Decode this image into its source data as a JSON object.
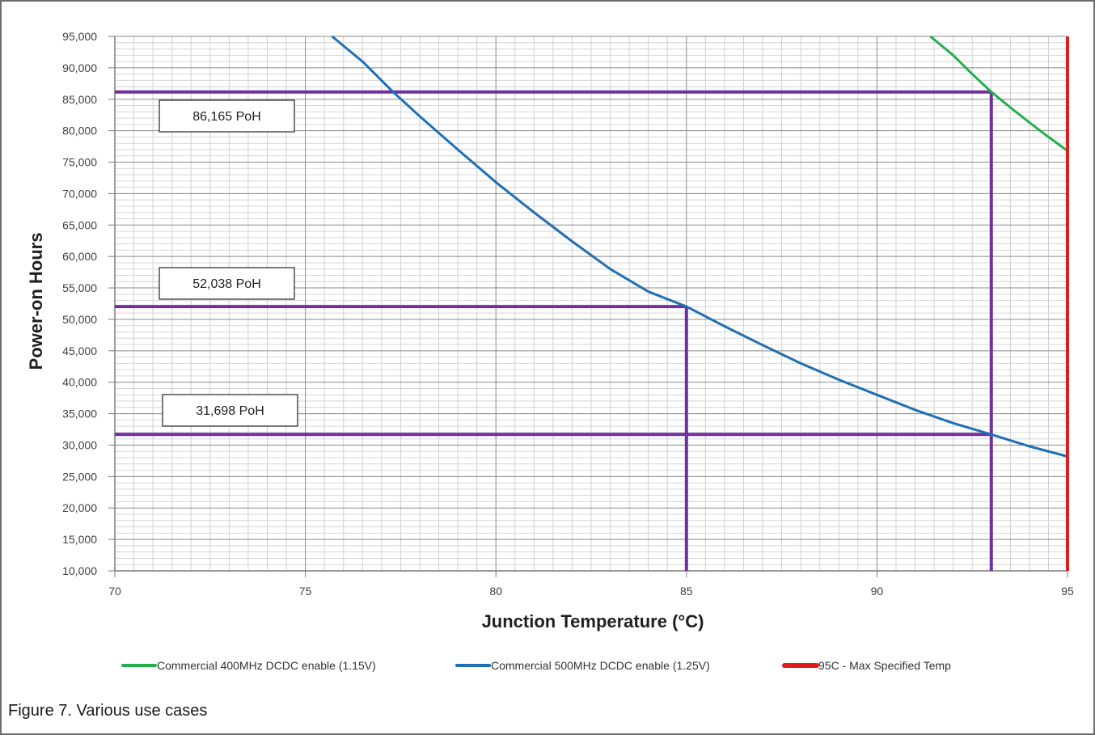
{
  "caption": "Figure 7.  Various use cases",
  "chart_data": {
    "type": "line",
    "title": "",
    "xlabel": "Junction Temperature (°C)",
    "ylabel": "Power-on Hours",
    "xlim": [
      70,
      95
    ],
    "ylim": [
      10000,
      95000
    ],
    "x_ticks": [
      70,
      75,
      80,
      85,
      90,
      95
    ],
    "x_tick_labels": [
      "70",
      "75",
      "80",
      "85",
      "90",
      "95"
    ],
    "y_ticks": [
      10000,
      15000,
      20000,
      25000,
      30000,
      35000,
      40000,
      45000,
      50000,
      55000,
      60000,
      65000,
      70000,
      75000,
      80000,
      85000,
      90000,
      95000
    ],
    "y_tick_labels": [
      "10,000",
      "15,000",
      "20,000",
      "25,000",
      "30,000",
      "35,000",
      "40,000",
      "45,000",
      "50,000",
      "55,000",
      "60,000",
      "65,000",
      "70,000",
      "75,000",
      "80,000",
      "85,000",
      "90,000",
      "95,000"
    ],
    "grid": true,
    "legend_position": "bottom",
    "series": [
      {
        "name": "Commercial 400MHz DCDC enable (1.15V)",
        "color": "#22b04b",
        "x": [
          91.4,
          92.0,
          92.5,
          93.0,
          93.5,
          94.0,
          94.5,
          95.0
        ],
        "y": [
          95000,
          92000,
          89000,
          86165,
          83700,
          81300,
          79000,
          76800
        ]
      },
      {
        "name": "Commercial 500MHz DCDC enable (1.25V)",
        "color": "#1f6fb4",
        "x": [
          75.7,
          76.5,
          77.3,
          78.0,
          79.0,
          80.0,
          81.0,
          82.0,
          83.0,
          84.0,
          85.0,
          86.0,
          87.0,
          88.0,
          89.0,
          90.0,
          91.0,
          92.0,
          93.0,
          94.0,
          95.0
        ],
        "y": [
          95000,
          91000,
          86165,
          82300,
          77000,
          71800,
          67000,
          62400,
          58000,
          54400,
          52038,
          48900,
          45900,
          43000,
          40400,
          38000,
          35600,
          33500,
          31698,
          29800,
          28200
        ]
      },
      {
        "name": "95C - Max Specified Temp",
        "color": "#e01b1b",
        "x": [
          95,
          95
        ],
        "y": [
          10000,
          95000
        ]
      }
    ],
    "reference_lines": [
      {
        "orientation": "horizontal",
        "y": 86165,
        "x_end": 93,
        "color": "#7030a0"
      },
      {
        "orientation": "horizontal",
        "y": 52038,
        "x_end": 85,
        "color": "#7030a0"
      },
      {
        "orientation": "horizontal",
        "y": 31698,
        "x_end": 93,
        "color": "#7030a0"
      },
      {
        "orientation": "vertical",
        "x": 85,
        "y_end": 52038,
        "color": "#7030a0"
      },
      {
        "orientation": "vertical",
        "x": 93,
        "y_end": 86165,
        "color": "#7030a0"
      }
    ],
    "annotations": [
      {
        "text": "86,165 PoH",
        "value": 86165
      },
      {
        "text": "52,038 PoH",
        "value": 52038
      },
      {
        "text": "31,698 PoH",
        "value": 31698
      }
    ]
  }
}
